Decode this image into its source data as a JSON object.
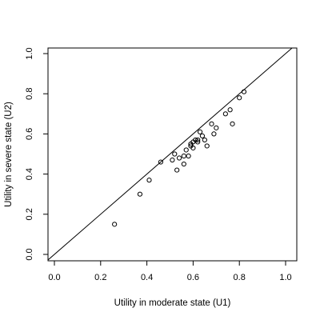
{
  "chart_data": {
    "type": "scatter",
    "title": "",
    "xlabel": "Utility in moderate state (U1)",
    "ylabel": "Utility in severe state (U2)",
    "xlim": [
      0.0,
      1.0
    ],
    "ylim": [
      0.0,
      1.0
    ],
    "xticks": [
      "0.0",
      "0.2",
      "0.4",
      "0.6",
      "0.8",
      "1.0"
    ],
    "yticks": [
      "0.0",
      "0.2",
      "0.4",
      "0.6",
      "0.8",
      "1.0"
    ],
    "grid": false,
    "reference_line": "y = x",
    "series": [
      {
        "marker": "open-circle",
        "color": "#000000",
        "points": [
          {
            "x": 0.26,
            "y": 0.15
          },
          {
            "x": 0.37,
            "y": 0.3
          },
          {
            "x": 0.41,
            "y": 0.37
          },
          {
            "x": 0.46,
            "y": 0.46
          },
          {
            "x": 0.51,
            "y": 0.47
          },
          {
            "x": 0.52,
            "y": 0.5
          },
          {
            "x": 0.53,
            "y": 0.42
          },
          {
            "x": 0.54,
            "y": 0.48
          },
          {
            "x": 0.56,
            "y": 0.49
          },
          {
            "x": 0.56,
            "y": 0.45
          },
          {
            "x": 0.57,
            "y": 0.52
          },
          {
            "x": 0.58,
            "y": 0.49
          },
          {
            "x": 0.59,
            "y": 0.55
          },
          {
            "x": 0.59,
            "y": 0.54
          },
          {
            "x": 0.6,
            "y": 0.53
          },
          {
            "x": 0.6,
            "y": 0.56
          },
          {
            "x": 0.61,
            "y": 0.57
          },
          {
            "x": 0.62,
            "y": 0.57
          },
          {
            "x": 0.62,
            "y": 0.56
          },
          {
            "x": 0.63,
            "y": 0.61
          },
          {
            "x": 0.64,
            "y": 0.59
          },
          {
            "x": 0.65,
            "y": 0.57
          },
          {
            "x": 0.66,
            "y": 0.54
          },
          {
            "x": 0.68,
            "y": 0.65
          },
          {
            "x": 0.69,
            "y": 0.6
          },
          {
            "x": 0.7,
            "y": 0.63
          },
          {
            "x": 0.74,
            "y": 0.7
          },
          {
            "x": 0.76,
            "y": 0.72
          },
          {
            "x": 0.77,
            "y": 0.65
          },
          {
            "x": 0.8,
            "y": 0.78
          },
          {
            "x": 0.82,
            "y": 0.81
          }
        ]
      }
    ]
  }
}
